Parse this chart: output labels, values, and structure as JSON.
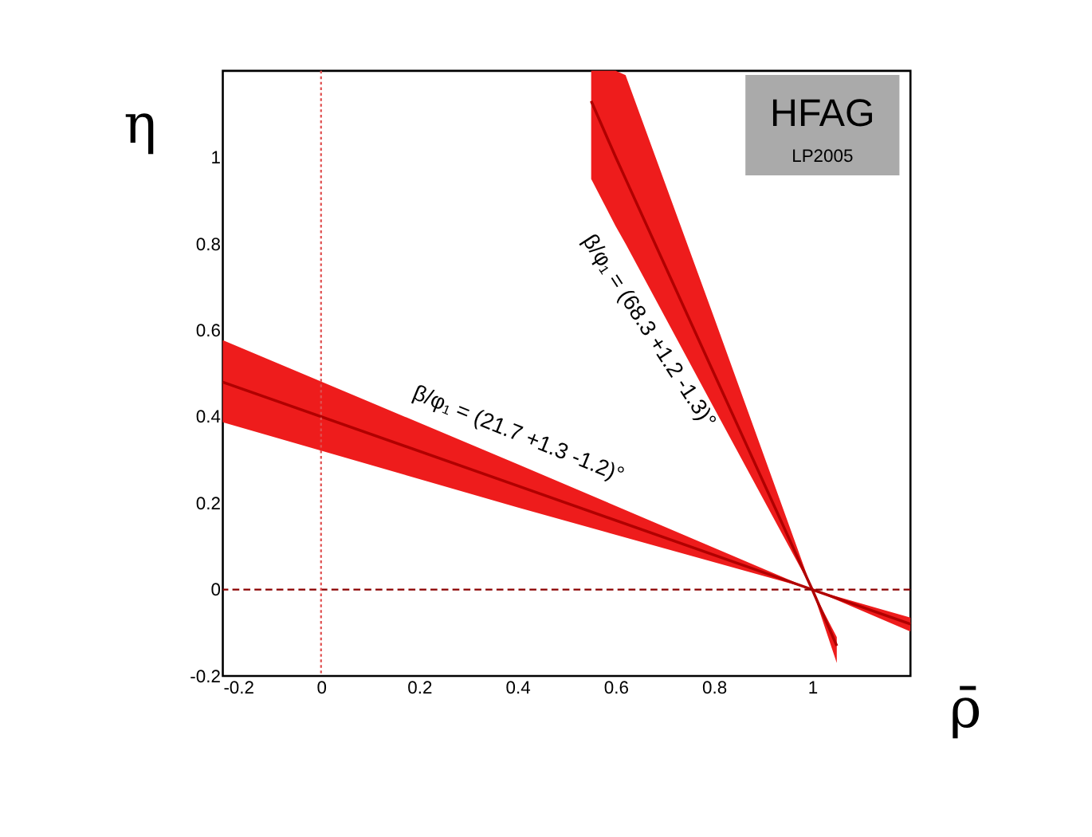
{
  "chart_data": {
    "type": "line",
    "xlabel": "ρ̄",
    "ylabel": "η",
    "xlim": [
      -0.2,
      1.2
    ],
    "ylim": [
      -0.2,
      1.2
    ],
    "xticks": [
      -0.2,
      0,
      0.2,
      0.4,
      0.6,
      0.8,
      1
    ],
    "yticks": [
      -0.2,
      0,
      0.2,
      0.4,
      0.6,
      0.8,
      1
    ],
    "grid": false,
    "marker": "none",
    "line_style": "solid",
    "series": [
      {
        "color": "#b00000",
        "x": [
          -0.2,
          0.4,
          1,
          1.2
        ],
        "values": [
          0.48,
          0.24,
          0,
          -0.08
        ],
        "lower": [
          0.387,
          0.19,
          0,
          -0.097
        ],
        "upper": [
          0.577,
          0.29,
          0,
          -0.065
        ]
      },
      {
        "color": "#b00000",
        "x": [
          0.55,
          0.6,
          0.62,
          0.8,
          1,
          1.05
        ],
        "values": [
          1.13,
          1.0,
          0.95,
          0.5,
          0,
          -0.13
        ],
        "lower": [
          0.95,
          0.84,
          0.8,
          0.42,
          0,
          -0.17
        ],
        "upper": [
          1.2,
          1.2,
          1.19,
          0.63,
          0,
          -0.11
        ]
      }
    ],
    "ref_lines": [
      {
        "axis": "y",
        "value": 0,
        "color": "#8b0000",
        "line_style": "dashed"
      },
      {
        "axis": "x",
        "value": 0,
        "color": "#e05050",
        "line_style": "dotted"
      }
    ],
    "annotations": [
      "HFAG",
      "LP2005",
      "β/φ₁ = (21.7 +1.3 -1.2)°",
      "β/φ₁ = (68.3 +1.2 -1.3)°"
    ]
  }
}
